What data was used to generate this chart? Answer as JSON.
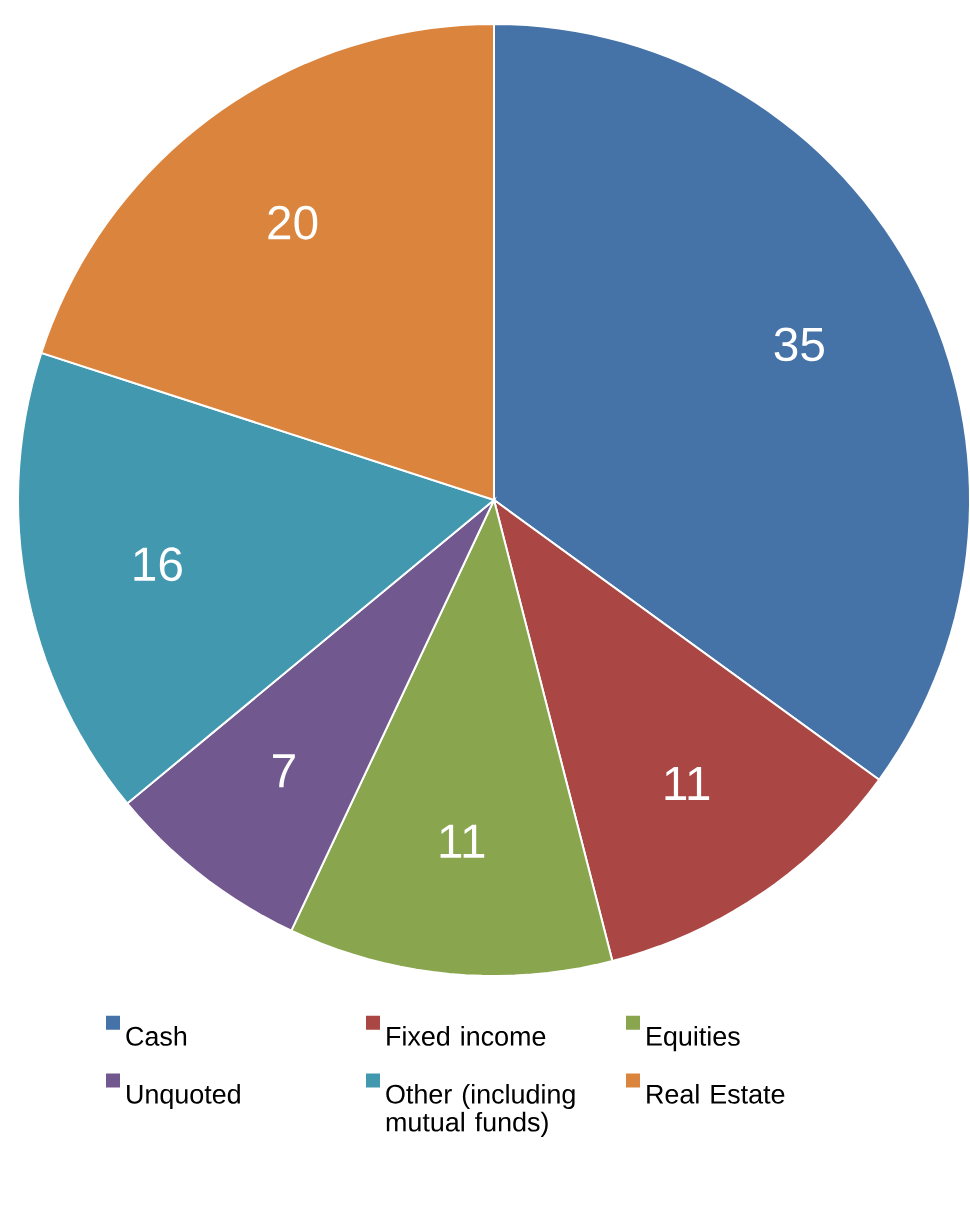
{
  "chart_data": {
    "type": "pie",
    "categories": [
      "Cash",
      "Fixed income",
      "Equities",
      "Unquoted",
      "Other (including mutual funds)",
      "Real Estate"
    ],
    "values": [
      35,
      11,
      11,
      7,
      16,
      20
    ],
    "colors": [
      "#4572a7",
      "#aa4643",
      "#89a54e",
      "#71588f",
      "#4198af",
      "#db843d"
    ],
    "data_labels": true,
    "legend": "bottom"
  }
}
